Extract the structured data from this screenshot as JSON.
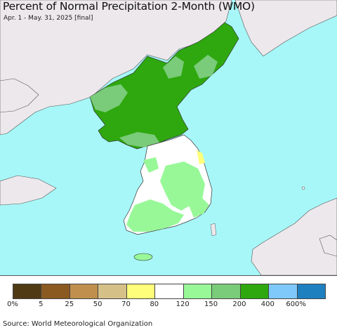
{
  "title": "Percent of Normal Precipitation 2-Month (WMO)",
  "subtitle": "Apr. 1 - May. 31, 2025 [final]",
  "source": "Source: World Meteorological Organization",
  "colors": {
    "ocean": "#a7f7f8",
    "foreign_land": "#ece8ec",
    "border_line": "#4a4a4a"
  },
  "legend": {
    "bins": [
      {
        "color": "#4f3a14"
      },
      {
        "color": "#8b5a21"
      },
      {
        "color": "#c08f4d"
      },
      {
        "color": "#d5c088"
      },
      {
        "color": "#fefe7a"
      },
      {
        "color": "#ffffff"
      },
      {
        "color": "#98f898"
      },
      {
        "color": "#7acb7a"
      },
      {
        "color": "#2ea80e"
      },
      {
        "color": "#7ec8fa"
      },
      {
        "color": "#1f80c0"
      }
    ],
    "ticks": [
      "0%",
      "5",
      "25",
      "50",
      "70",
      "80",
      "120",
      "150",
      "200",
      "400",
      "600%"
    ]
  }
}
